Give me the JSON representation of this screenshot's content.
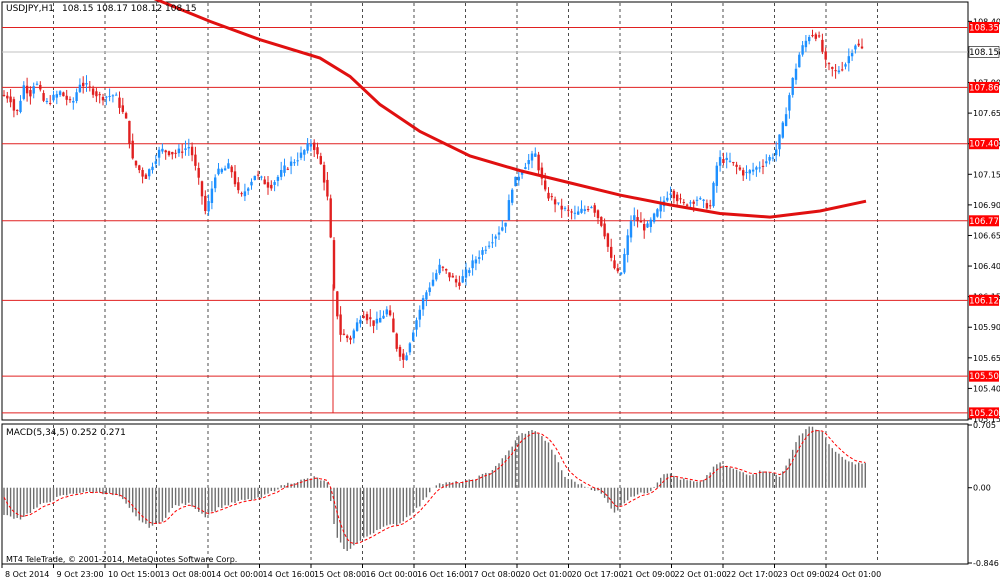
{
  "window": {
    "symbol_label": "USDJPY,H1",
    "ohlc_label": "108.15 108.17 108.12 108.15",
    "copyright": "MT4 TeleTrade, © 2001-2014, MetaQuotes Software Corp."
  },
  "colors": {
    "background": "#ffffff",
    "frame": "#000000",
    "grid": "#000000",
    "bull": "#1e90ff",
    "bear": "#e02020",
    "ma": "#e01010",
    "level_line": "#e02020",
    "level_label_bg": "#ff0000",
    "price_label_bg": "#ffffff",
    "histogram": "#6e6e6e",
    "signal": "#ff0000"
  },
  "chart_data": [
    {
      "type": "candlestick",
      "symbol": "USDJPY",
      "timeframe": "H1",
      "ylim": [
        105.15,
        108.55
      ],
      "y_ticks": [
        "108.40",
        "108.15",
        "107.90",
        "107.65",
        "107.40",
        "107.15",
        "106.90",
        "106.65",
        "106.40",
        "106.15",
        "105.90",
        "105.65",
        "105.40",
        "105.15"
      ],
      "x_labels": [
        "8 Oct 2014",
        "9 Oct 23:00",
        "10 Oct 15:00",
        "13 Oct 08:00",
        "14 Oct 00:00",
        "14 Oct 16:00",
        "15 Oct 08:00",
        "16 Oct 00:00",
        "16 Oct 16:00",
        "17 Oct 08:00",
        "20 Oct 01:00",
        "20 Oct 17:00",
        "21 Oct 09:00",
        "22 Oct 01:00",
        "22 Oct 17:00",
        "23 Oct 09:00",
        "24 Oct 01:00"
      ],
      "horizontal_levels": [
        "108.35",
        "107.86",
        "107.40",
        "106.77",
        "106.12",
        "105.50",
        "105.20"
      ],
      "current_price": "108.15",
      "price_path": [
        {
          "x": 0,
          "y": 107.8
        },
        {
          "x": 10,
          "y": 107.78
        },
        {
          "x": 16,
          "y": 107.62
        },
        {
          "x": 24,
          "y": 107.88
        },
        {
          "x": 30,
          "y": 107.8
        },
        {
          "x": 35,
          "y": 107.92
        },
        {
          "x": 45,
          "y": 107.72
        },
        {
          "x": 60,
          "y": 107.82
        },
        {
          "x": 72,
          "y": 107.72
        },
        {
          "x": 80,
          "y": 107.9
        },
        {
          "x": 90,
          "y": 107.85
        },
        {
          "x": 100,
          "y": 107.78
        },
        {
          "x": 115,
          "y": 107.8
        },
        {
          "x": 128,
          "y": 107.55
        },
        {
          "x": 131,
          "y": 107.28
        },
        {
          "x": 145,
          "y": 107.12
        },
        {
          "x": 160,
          "y": 107.35
        },
        {
          "x": 175,
          "y": 107.32
        },
        {
          "x": 190,
          "y": 107.38
        },
        {
          "x": 200,
          "y": 107.05
        },
        {
          "x": 206,
          "y": 106.82
        },
        {
          "x": 215,
          "y": 107.15
        },
        {
          "x": 230,
          "y": 107.22
        },
        {
          "x": 240,
          "y": 106.95
        },
        {
          "x": 255,
          "y": 107.15
        },
        {
          "x": 270,
          "y": 107.05
        },
        {
          "x": 285,
          "y": 107.2
        },
        {
          "x": 300,
          "y": 107.3
        },
        {
          "x": 312,
          "y": 107.42
        },
        {
          "x": 322,
          "y": 107.2
        },
        {
          "x": 329,
          "y": 106.88
        },
        {
          "x": 333,
          "y": 106.25
        },
        {
          "x": 340,
          "y": 105.85
        },
        {
          "x": 350,
          "y": 105.8
        },
        {
          "x": 362,
          "y": 106.02
        },
        {
          "x": 375,
          "y": 105.92
        },
        {
          "x": 388,
          "y": 106.05
        },
        {
          "x": 396,
          "y": 105.75
        },
        {
          "x": 404,
          "y": 105.62
        },
        {
          "x": 412,
          "y": 105.85
        },
        {
          "x": 424,
          "y": 106.15
        },
        {
          "x": 440,
          "y": 106.4
        },
        {
          "x": 458,
          "y": 106.25
        },
        {
          "x": 475,
          "y": 106.45
        },
        {
          "x": 490,
          "y": 106.6
        },
        {
          "x": 505,
          "y": 106.75
        },
        {
          "x": 512,
          "y": 107.05
        },
        {
          "x": 524,
          "y": 107.22
        },
        {
          "x": 535,
          "y": 107.32
        },
        {
          "x": 545,
          "y": 107.0
        },
        {
          "x": 560,
          "y": 106.88
        },
        {
          "x": 575,
          "y": 106.82
        },
        {
          "x": 592,
          "y": 106.9
        },
        {
          "x": 603,
          "y": 106.72
        },
        {
          "x": 612,
          "y": 106.42
        },
        {
          "x": 620,
          "y": 106.3
        },
        {
          "x": 632,
          "y": 106.82
        },
        {
          "x": 646,
          "y": 106.7
        },
        {
          "x": 660,
          "y": 106.88
        },
        {
          "x": 670,
          "y": 107.02
        },
        {
          "x": 683,
          "y": 106.9
        },
        {
          "x": 697,
          "y": 106.95
        },
        {
          "x": 710,
          "y": 106.88
        },
        {
          "x": 718,
          "y": 107.28
        },
        {
          "x": 730,
          "y": 107.25
        },
        {
          "x": 745,
          "y": 107.15
        },
        {
          "x": 760,
          "y": 107.22
        },
        {
          "x": 775,
          "y": 107.32
        },
        {
          "x": 783,
          "y": 107.55
        },
        {
          "x": 792,
          "y": 107.9
        },
        {
          "x": 800,
          "y": 108.15
        },
        {
          "x": 810,
          "y": 108.3
        },
        {
          "x": 818,
          "y": 108.28
        },
        {
          "x": 826,
          "y": 108.05
        },
        {
          "x": 835,
          "y": 107.98
        },
        {
          "x": 845,
          "y": 108.05
        },
        {
          "x": 855,
          "y": 108.22
        },
        {
          "x": 865,
          "y": 108.15
        }
      ],
      "spike_low": {
        "x": 333,
        "y": 105.2
      },
      "moving_average": [
        {
          "x": 150,
          "y": 108.6
        },
        {
          "x": 210,
          "y": 108.4
        },
        {
          "x": 260,
          "y": 108.25
        },
        {
          "x": 320,
          "y": 108.1
        },
        {
          "x": 350,
          "y": 107.95
        },
        {
          "x": 380,
          "y": 107.72
        },
        {
          "x": 420,
          "y": 107.5
        },
        {
          "x": 470,
          "y": 107.3
        },
        {
          "x": 520,
          "y": 107.18
        },
        {
          "x": 570,
          "y": 107.08
        },
        {
          "x": 620,
          "y": 106.98
        },
        {
          "x": 670,
          "y": 106.9
        },
        {
          "x": 720,
          "y": 106.83
        },
        {
          "x": 770,
          "y": 106.8
        },
        {
          "x": 820,
          "y": 106.85
        },
        {
          "x": 866,
          "y": 106.93
        }
      ]
    },
    {
      "type": "bar",
      "title": "MACD(5,34,5) 0.252 0.271",
      "ylim": [
        -0.846,
        0.705
      ],
      "y_ticks": [
        "0.705",
        "0.00",
        "-0.846"
      ],
      "macd_path": [
        {
          "x": 0,
          "y": -0.3
        },
        {
          "x": 20,
          "y": -0.35
        },
        {
          "x": 40,
          "y": -0.2
        },
        {
          "x": 60,
          "y": -0.1
        },
        {
          "x": 80,
          "y": -0.05
        },
        {
          "x": 100,
          "y": -0.05
        },
        {
          "x": 120,
          "y": -0.1
        },
        {
          "x": 135,
          "y": -0.32
        },
        {
          "x": 148,
          "y": -0.44
        },
        {
          "x": 160,
          "y": -0.4
        },
        {
          "x": 175,
          "y": -0.2
        },
        {
          "x": 190,
          "y": -0.18
        },
        {
          "x": 205,
          "y": -0.32
        },
        {
          "x": 220,
          "y": -0.22
        },
        {
          "x": 240,
          "y": -0.15
        },
        {
          "x": 260,
          "y": -0.12
        },
        {
          "x": 285,
          "y": 0.04
        },
        {
          "x": 300,
          "y": 0.08
        },
        {
          "x": 315,
          "y": 0.12
        },
        {
          "x": 328,
          "y": 0.05
        },
        {
          "x": 335,
          "y": -0.5
        },
        {
          "x": 345,
          "y": -0.72
        },
        {
          "x": 360,
          "y": -0.6
        },
        {
          "x": 380,
          "y": -0.45
        },
        {
          "x": 400,
          "y": -0.4
        },
        {
          "x": 420,
          "y": -0.2
        },
        {
          "x": 435,
          "y": 0.04
        },
        {
          "x": 455,
          "y": 0.06
        },
        {
          "x": 470,
          "y": 0.08
        },
        {
          "x": 490,
          "y": 0.18
        },
        {
          "x": 505,
          "y": 0.35
        },
        {
          "x": 520,
          "y": 0.6
        },
        {
          "x": 535,
          "y": 0.65
        },
        {
          "x": 550,
          "y": 0.48
        },
        {
          "x": 565,
          "y": 0.12
        },
        {
          "x": 580,
          "y": 0.04
        },
        {
          "x": 600,
          "y": -0.05
        },
        {
          "x": 615,
          "y": -0.28
        },
        {
          "x": 630,
          "y": -0.1
        },
        {
          "x": 650,
          "y": -0.04
        },
        {
          "x": 665,
          "y": 0.18
        },
        {
          "x": 680,
          "y": 0.1
        },
        {
          "x": 700,
          "y": 0.05
        },
        {
          "x": 718,
          "y": 0.28
        },
        {
          "x": 735,
          "y": 0.2
        },
        {
          "x": 750,
          "y": 0.15
        },
        {
          "x": 765,
          "y": 0.2
        },
        {
          "x": 780,
          "y": 0.12
        },
        {
          "x": 790,
          "y": 0.35
        },
        {
          "x": 800,
          "y": 0.6
        },
        {
          "x": 810,
          "y": 0.7
        },
        {
          "x": 822,
          "y": 0.62
        },
        {
          "x": 835,
          "y": 0.4
        },
        {
          "x": 850,
          "y": 0.28
        },
        {
          "x": 866,
          "y": 0.27
        }
      ]
    }
  ]
}
